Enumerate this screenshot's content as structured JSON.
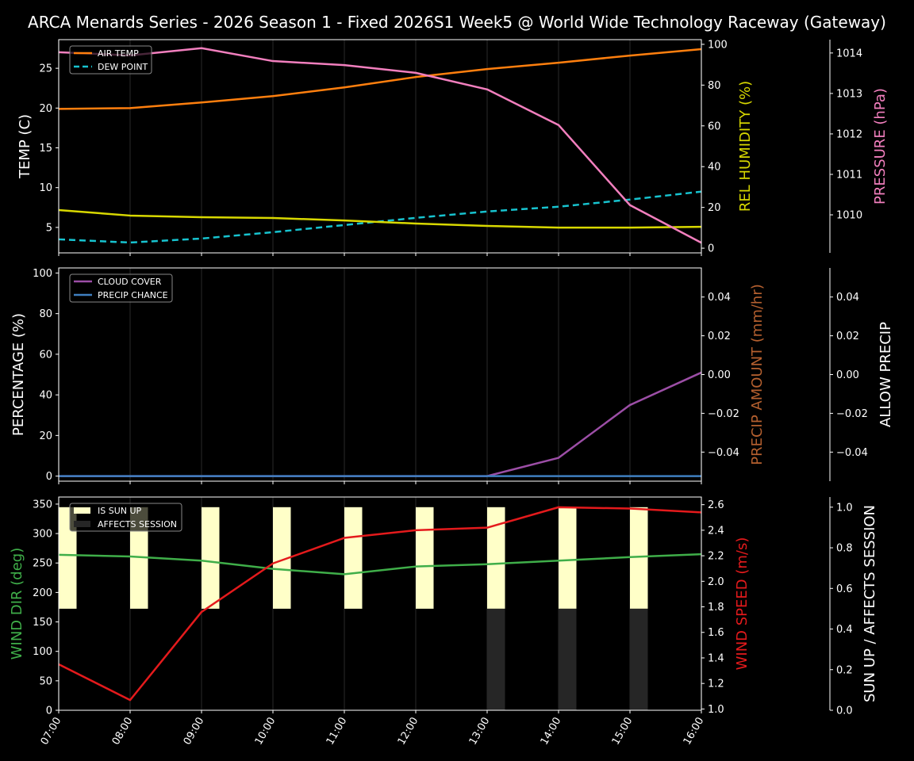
{
  "title": "ARCA Menards Series - 2026 Season 1 - Fixed 2026S1 Week5 @ World Wide Technology Raceway (Gateway)",
  "chart_data": [
    {
      "type": "line",
      "x": [
        "07:00",
        "08:00",
        "09:00",
        "10:00",
        "11:00",
        "12:00",
        "13:00",
        "14:00",
        "15:00",
        "16:00"
      ],
      "axes": {
        "left": {
          "label": "TEMP (C)",
          "color": "#ffffff",
          "ylim": [
            1.8,
            28.6
          ],
          "ticks": [
            5,
            10,
            15,
            20,
            25
          ],
          "tick_labels": [
            "5",
            "10",
            "15",
            "20",
            "25"
          ]
        },
        "right": {
          "label": "REL HUMIDITY (%)",
          "color": "#d8d800",
          "ylim": [
            -2.3,
            102.3
          ],
          "ticks": [
            0,
            20,
            40,
            60,
            80,
            100
          ],
          "tick_labels": [
            "0",
            "20",
            "40",
            "60",
            "80",
            "100"
          ]
        },
        "right2": {
          "label": "PRESSURE (hPa)",
          "color": "#f27fbe",
          "ylim": [
            1009.06,
            1014.33
          ],
          "ticks": [
            1010,
            1011,
            1012,
            1013,
            1014
          ],
          "tick_labels": [
            "1010",
            "1011",
            "1012",
            "1013",
            "1014"
          ]
        }
      },
      "series": [
        {
          "name": "AIR TEMP",
          "axis": "left",
          "color": "#ff7f0e",
          "dashed": false,
          "values": [
            19.9,
            20.0,
            20.7,
            21.5,
            22.6,
            23.9,
            24.9,
            25.7,
            26.6,
            27.4
          ]
        },
        {
          "name": "DEW POINT",
          "axis": "left",
          "color": "#17c3cf",
          "dashed": true,
          "values": [
            3.5,
            3.1,
            3.6,
            4.4,
            5.3,
            6.2,
            7.0,
            7.6,
            8.5,
            9.5
          ]
        },
        {
          "axis": "right",
          "color": "#d8d800",
          "dashed": false,
          "values": [
            18.7,
            16.0,
            15.2,
            14.8,
            13.6,
            12.1,
            10.9,
            10.1,
            10.1,
            10.5
          ]
        },
        {
          "axis": "right2",
          "color": "#f27fbe",
          "dashed": false,
          "values": [
            1014.02,
            1013.94,
            1014.12,
            1013.8,
            1013.7,
            1013.51,
            1013.1,
            1012.22,
            1010.24,
            1009.31
          ]
        }
      ],
      "legend": "top-left"
    },
    {
      "type": "line",
      "x": [
        "07:00",
        "08:00",
        "09:00",
        "10:00",
        "11:00",
        "12:00",
        "13:00",
        "14:00",
        "15:00",
        "16:00"
      ],
      "axes": {
        "left": {
          "label": "PERCENTAGE (%)",
          "color": "#ffffff",
          "ylim": [
            -2.5,
            102.5
          ],
          "ticks": [
            0,
            20,
            40,
            60,
            80,
            100
          ],
          "tick_labels": [
            "0",
            "20",
            "40",
            "60",
            "80",
            "100"
          ]
        },
        "right": {
          "label": "PRECIP AMOUNT (mm/hr)",
          "color": "#b5602f",
          "ylim": [
            -0.055,
            0.055
          ],
          "ticks": [
            -0.04,
            -0.02,
            0,
            0.02,
            0.04
          ],
          "tick_labels": [
            "−0.04",
            "−0.02",
            "0.00",
            "0.02",
            "0.04"
          ]
        },
        "right2": {
          "label": "ALLOW PRECIP",
          "color": "#ffffff",
          "ylim": [
            -0.055,
            0.055
          ],
          "ticks": [
            -0.04,
            -0.02,
            0,
            0.02,
            0.04
          ],
          "tick_labels": [
            "−0.04",
            "−0.02",
            "0.00",
            "0.02",
            "0.04"
          ]
        }
      },
      "series": [
        {
          "name": "CLOUD COVER",
          "axis": "left",
          "color": "#9c4ea6",
          "dashed": false,
          "values": [
            0,
            0,
            0,
            0,
            0,
            0,
            0,
            9,
            35,
            51
          ]
        },
        {
          "name": "PRECIP CHANCE",
          "axis": "left",
          "color": "#3f7fc0",
          "dashed": false,
          "values": [
            0,
            0,
            0,
            0,
            0,
            0,
            0,
            0,
            0,
            0
          ]
        }
      ],
      "legend": "top-left"
    },
    {
      "type": "line",
      "x": [
        "07:00",
        "08:00",
        "09:00",
        "10:00",
        "11:00",
        "12:00",
        "13:00",
        "14:00",
        "15:00",
        "16:00"
      ],
      "axes": {
        "left": {
          "label": "WIND DIR (deg)",
          "color": "#3fae49",
          "ylim": [
            0,
            362
          ],
          "ticks": [
            0,
            50,
            100,
            150,
            200,
            250,
            300,
            350
          ],
          "tick_labels": [
            "0",
            "50",
            "100",
            "150",
            "200",
            "250",
            "300",
            "350"
          ]
        },
        "right": {
          "label": "WIND SPEED (m/s)",
          "color": "#e41a1c",
          "ylim": [
            0.99,
            2.66
          ],
          "ticks": [
            1.0,
            1.2,
            1.4,
            1.6,
            1.8,
            2.0,
            2.2,
            2.4,
            2.6
          ],
          "tick_labels": [
            "1.0",
            "1.2",
            "1.4",
            "1.6",
            "1.8",
            "2.0",
            "2.2",
            "2.4",
            "2.6"
          ]
        },
        "right2": {
          "label": "SUN UP / AFFECTS SESSION",
          "color": "#ffffff",
          "ylim": [
            0,
            1.05
          ],
          "ticks": [
            0,
            0.2,
            0.4,
            0.6,
            0.8,
            1.0
          ],
          "tick_labels": [
            "0.0",
            "0.2",
            "0.4",
            "0.6",
            "0.8",
            "1.0"
          ]
        }
      },
      "bars": [
        {
          "name": "IS SUN UP",
          "axis": "right2",
          "color": "#ffffc8",
          "range": [
            0.5,
            1.0
          ],
          "values": [
            1,
            1,
            1,
            1,
            1,
            1,
            1,
            1,
            1,
            0
          ]
        },
        {
          "name": "AFFECTS SESSION",
          "axis": "right2",
          "color": "#262626",
          "range": [
            0,
            0.5
          ],
          "values": [
            0,
            0,
            0,
            0,
            0,
            0,
            1,
            1,
            1,
            0
          ]
        }
      ],
      "series": [
        {
          "axis": "left",
          "color": "#3fae49",
          "dashed": false,
          "values": [
            264,
            261,
            254,
            240,
            231,
            244,
            248,
            254,
            260,
            265
          ]
        },
        {
          "axis": "right",
          "color": "#e41a1c",
          "dashed": false,
          "values": [
            1.35,
            1.07,
            1.76,
            2.14,
            2.34,
            2.4,
            2.42,
            2.58,
            2.57,
            2.54
          ]
        }
      ],
      "legend": "top-left"
    }
  ]
}
